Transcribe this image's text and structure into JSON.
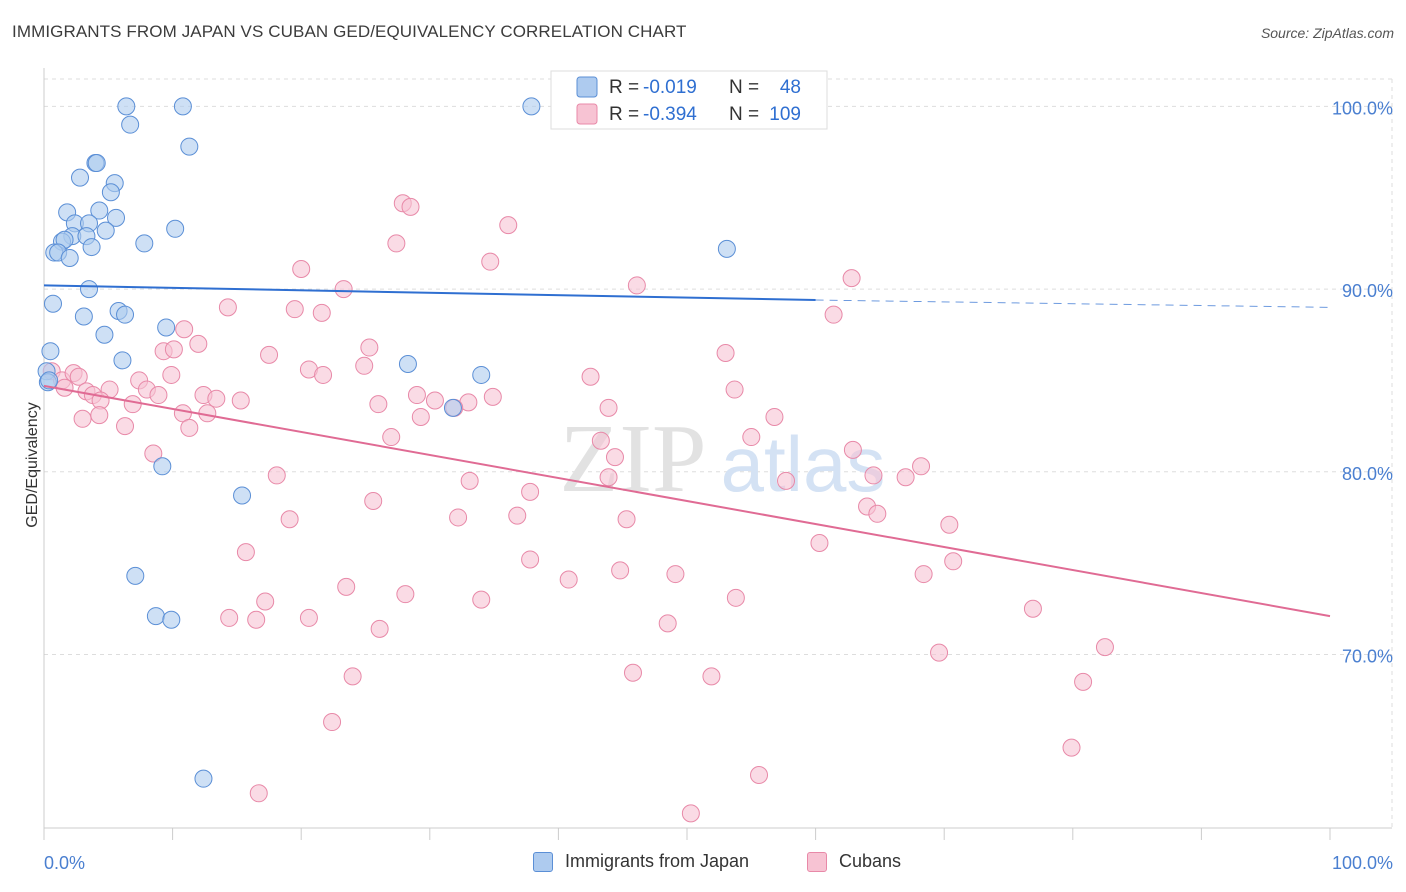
{
  "title": "IMMIGRANTS FROM JAPAN VS CUBAN GED/EQUIVALENCY CORRELATION CHART",
  "source": "Source: ZipAtlas.com",
  "watermark": {
    "zip": "ZIP",
    "atlas": "atlas"
  },
  "colors": {
    "japan_fill": "#aecbef",
    "japan_stroke": "#5b8fd6",
    "japan_line": "#2f6fd1",
    "cuban_fill": "#f7c3d3",
    "cuban_stroke": "#e889a8",
    "cuban_line": "#e06b94",
    "axis_label": "#4a7fd0",
    "grid": "#dddddd"
  },
  "chart_data": {
    "type": "scatter",
    "xlabel": "",
    "ylabel": "GED/Equivalency",
    "xlim": [
      0,
      100
    ],
    "ylim": [
      60.5,
      101.5
    ],
    "x_tick_labels": [
      "0.0%",
      "100.0%"
    ],
    "y_ticks": [
      70,
      80,
      90,
      100
    ],
    "y_tick_labels": [
      "70.0%",
      "80.0%",
      "90.0%",
      "100.0%"
    ],
    "grid": true,
    "legend_position": "top-center",
    "legend": [
      {
        "r_label": "R =",
        "r_value": "-0.019",
        "n_label": "N =",
        "n_value": "48"
      },
      {
        "r_label": "R =",
        "r_value": "-0.394",
        "n_label": "N =",
        "n_value": "109"
      }
    ],
    "series": [
      {
        "name": "Immigrants from Japan",
        "trend": {
          "x": [
            0,
            60
          ],
          "y": [
            90.2,
            89.4
          ],
          "dashed_to_x": 100,
          "dashed_y_end": 89.0
        },
        "points": [
          [
            6.4,
            100
          ],
          [
            10.8,
            100
          ],
          [
            37.9,
            100
          ],
          [
            6.7,
            99
          ],
          [
            11.3,
            97.8
          ],
          [
            4.0,
            96.9
          ],
          [
            4.1,
            96.9
          ],
          [
            2.8,
            96.1
          ],
          [
            5.5,
            95.8
          ],
          [
            5.2,
            95.3
          ],
          [
            1.8,
            94.2
          ],
          [
            4.3,
            94.3
          ],
          [
            2.4,
            93.6
          ],
          [
            3.5,
            93.6
          ],
          [
            5.6,
            93.9
          ],
          [
            4.8,
            93.2
          ],
          [
            10.2,
            93.3
          ],
          [
            2.2,
            92.9
          ],
          [
            3.3,
            92.9
          ],
          [
            1.4,
            92.6
          ],
          [
            1.6,
            92.7
          ],
          [
            3.7,
            92.3
          ],
          [
            7.8,
            92.5
          ],
          [
            0.8,
            92.0
          ],
          [
            1.1,
            92.0
          ],
          [
            2.0,
            91.7
          ],
          [
            53.1,
            92.2
          ],
          [
            3.5,
            90.0
          ],
          [
            0.7,
            89.2
          ],
          [
            3.1,
            88.5
          ],
          [
            5.8,
            88.8
          ],
          [
            6.3,
            88.6
          ],
          [
            9.5,
            87.9
          ],
          [
            4.7,
            87.5
          ],
          [
            0.5,
            86.6
          ],
          [
            6.1,
            86.1
          ],
          [
            28.3,
            85.9
          ],
          [
            34.0,
            85.3
          ],
          [
            0.2,
            85.5
          ],
          [
            0.3,
            84.9
          ],
          [
            31.8,
            83.5
          ],
          [
            9.2,
            80.3
          ],
          [
            15.4,
            78.7
          ],
          [
            7.1,
            74.3
          ],
          [
            8.7,
            72.1
          ],
          [
            9.9,
            71.9
          ],
          [
            12.4,
            63.2
          ],
          [
            0.4,
            85.0
          ]
        ]
      },
      {
        "name": "Cubans",
        "trend": {
          "x": [
            0,
            100
          ],
          "y": [
            84.7,
            72.1
          ]
        },
        "points": [
          [
            27.9,
            94.7
          ],
          [
            28.5,
            94.5
          ],
          [
            36.1,
            93.5
          ],
          [
            27.4,
            92.5
          ],
          [
            34.7,
            91.5
          ],
          [
            20.0,
            91.1
          ],
          [
            46.1,
            90.2
          ],
          [
            62.8,
            90.6
          ],
          [
            23.3,
            90.0
          ],
          [
            14.3,
            89.0
          ],
          [
            19.5,
            88.9
          ],
          [
            21.6,
            88.7
          ],
          [
            61.4,
            88.6
          ],
          [
            10.9,
            87.8
          ],
          [
            12.0,
            87.0
          ],
          [
            9.3,
            86.6
          ],
          [
            10.1,
            86.7
          ],
          [
            17.5,
            86.4
          ],
          [
            25.3,
            86.8
          ],
          [
            53.0,
            86.5
          ],
          [
            20.6,
            85.6
          ],
          [
            24.9,
            85.8
          ],
          [
            21.7,
            85.3
          ],
          [
            0.6,
            85.5
          ],
          [
            1.4,
            85.0
          ],
          [
            2.3,
            85.4
          ],
          [
            2.7,
            85.2
          ],
          [
            7.4,
            85.0
          ],
          [
            9.9,
            85.3
          ],
          [
            42.5,
            85.2
          ],
          [
            1.6,
            84.6
          ],
          [
            3.3,
            84.4
          ],
          [
            5.1,
            84.5
          ],
          [
            3.8,
            84.2
          ],
          [
            8.0,
            84.5
          ],
          [
            8.9,
            84.2
          ],
          [
            12.4,
            84.2
          ],
          [
            13.4,
            84.0
          ],
          [
            15.3,
            83.9
          ],
          [
            26.0,
            83.7
          ],
          [
            29.0,
            84.2
          ],
          [
            30.4,
            83.9
          ],
          [
            33.0,
            83.8
          ],
          [
            34.9,
            84.1
          ],
          [
            53.7,
            84.5
          ],
          [
            4.4,
            83.9
          ],
          [
            6.9,
            83.7
          ],
          [
            10.8,
            83.2
          ],
          [
            12.7,
            83.2
          ],
          [
            3.0,
            82.9
          ],
          [
            4.3,
            83.1
          ],
          [
            6.3,
            82.5
          ],
          [
            11.3,
            82.4
          ],
          [
            29.3,
            83.0
          ],
          [
            43.9,
            83.5
          ],
          [
            56.8,
            83.0
          ],
          [
            27.0,
            81.9
          ],
          [
            43.3,
            81.7
          ],
          [
            55.0,
            81.9
          ],
          [
            8.5,
            81.0
          ],
          [
            44.4,
            80.8
          ],
          [
            62.9,
            81.2
          ],
          [
            18.1,
            79.8
          ],
          [
            33.1,
            79.5
          ],
          [
            43.9,
            79.7
          ],
          [
            57.7,
            79.5
          ],
          [
            64.5,
            79.8
          ],
          [
            67.0,
            79.7
          ],
          [
            68.2,
            80.3
          ],
          [
            37.8,
            78.9
          ],
          [
            25.6,
            78.4
          ],
          [
            64.0,
            78.1
          ],
          [
            64.8,
            77.7
          ],
          [
            19.1,
            77.4
          ],
          [
            32.2,
            77.5
          ],
          [
            36.8,
            77.6
          ],
          [
            45.3,
            77.4
          ],
          [
            70.4,
            77.1
          ],
          [
            60.3,
            76.1
          ],
          [
            15.7,
            75.6
          ],
          [
            37.8,
            75.2
          ],
          [
            70.7,
            75.1
          ],
          [
            44.8,
            74.6
          ],
          [
            49.1,
            74.4
          ],
          [
            68.4,
            74.4
          ],
          [
            40.8,
            74.1
          ],
          [
            23.5,
            73.7
          ],
          [
            28.1,
            73.3
          ],
          [
            34.0,
            73.0
          ],
          [
            17.2,
            72.9
          ],
          [
            53.8,
            73.1
          ],
          [
            14.4,
            72.0
          ],
          [
            16.5,
            71.9
          ],
          [
            20.6,
            72.0
          ],
          [
            76.9,
            72.5
          ],
          [
            26.1,
            71.4
          ],
          [
            48.5,
            71.7
          ],
          [
            69.6,
            70.1
          ],
          [
            82.5,
            70.4
          ],
          [
            45.8,
            69.0
          ],
          [
            24.0,
            68.8
          ],
          [
            51.9,
            68.8
          ],
          [
            80.8,
            68.5
          ],
          [
            22.4,
            66.3
          ],
          [
            79.9,
            64.9
          ],
          [
            55.6,
            63.4
          ],
          [
            16.7,
            62.4
          ],
          [
            50.3,
            61.3
          ],
          [
            31.9,
            83.5
          ]
        ]
      }
    ]
  }
}
